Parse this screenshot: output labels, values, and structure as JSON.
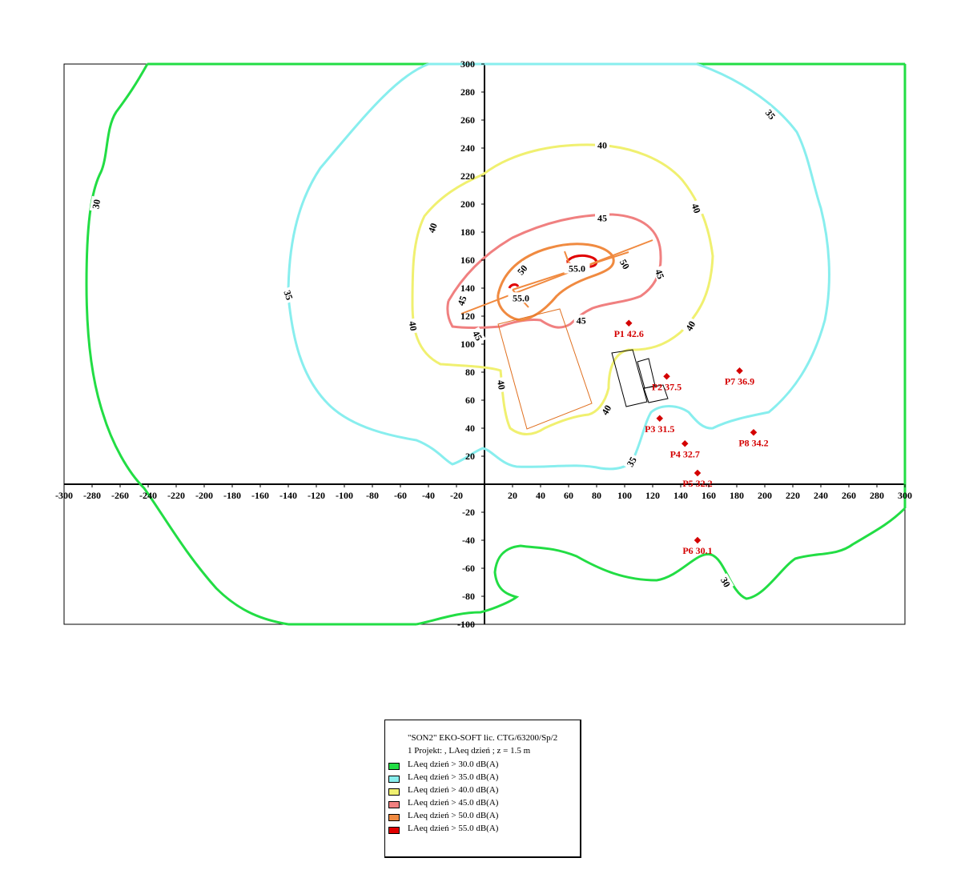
{
  "chart_data": {
    "type": "contour",
    "xlim": [
      -300,
      300
    ],
    "ylim": [
      -100,
      300
    ],
    "x_ticks": [
      -300,
      -280,
      -260,
      -240,
      -220,
      -200,
      -180,
      -160,
      -140,
      -120,
      -100,
      -80,
      -60,
      -40,
      -20,
      20,
      40,
      60,
      80,
      100,
      120,
      140,
      160,
      180,
      200,
      220,
      240,
      260,
      280,
      300
    ],
    "y_ticks": [
      300,
      280,
      260,
      240,
      220,
      200,
      180,
      160,
      140,
      120,
      100,
      80,
      60,
      40,
      20,
      -20,
      -40,
      -60,
      -80,
      -100
    ],
    "grid": false,
    "contours": [
      {
        "level": "30",
        "color": "#22dd44",
        "labels": [
          {
            "text": "30",
            "x": -277,
            "y": 200,
            "rot": -80
          },
          {
            "text": "30",
            "x": 172,
            "y": -70,
            "rot": 60
          }
        ]
      },
      {
        "level": "35",
        "color": "#88eeee",
        "labels": [
          {
            "text": "35",
            "x": -140,
            "y": 135,
            "rot": 70
          },
          {
            "text": "35",
            "x": 204,
            "y": 264,
            "rot": 50
          },
          {
            "text": "35",
            "x": 105,
            "y": 16,
            "rot": -60
          }
        ]
      },
      {
        "level": "40",
        "color": "#f0f070",
        "labels": [
          {
            "text": "40",
            "x": 84,
            "y": 242,
            "rot": 0
          },
          {
            "text": "40",
            "x": -37,
            "y": 183,
            "rot": -70
          },
          {
            "text": "40",
            "x": -51,
            "y": 113,
            "rot": 80
          },
          {
            "text": "40",
            "x": 151,
            "y": 197,
            "rot": 70
          },
          {
            "text": "40",
            "x": 147,
            "y": 113,
            "rot": -60
          },
          {
            "text": "40",
            "x": 12,
            "y": 71,
            "rot": 80
          },
          {
            "text": "40",
            "x": 87,
            "y": 53,
            "rot": -60
          }
        ]
      },
      {
        "level": "45",
        "color": "#f08080",
        "labels": [
          {
            "text": "45",
            "x": 84,
            "y": 190,
            "rot": 0
          },
          {
            "text": "45",
            "x": -16,
            "y": 131,
            "rot": -70
          },
          {
            "text": "45",
            "x": -5,
            "y": 106,
            "rot": 60
          },
          {
            "text": "45",
            "x": 125,
            "y": 150,
            "rot": 70
          },
          {
            "text": "45",
            "x": 69,
            "y": 117,
            "rot": 0
          }
        ]
      },
      {
        "level": "50",
        "color": "#f08a40",
        "labels": [
          {
            "text": "50",
            "x": 27,
            "y": 153,
            "rot": -50
          },
          {
            "text": "50",
            "x": 100,
            "y": 157,
            "rot": 60
          }
        ]
      },
      {
        "level": "55",
        "color": "#e00000",
        "labels": [
          {
            "text": "55.0",
            "x": 66,
            "y": 154,
            "rot": 0
          },
          {
            "text": "55.0",
            "x": 26,
            "y": 133,
            "rot": 0
          }
        ]
      }
    ],
    "points": [
      {
        "name": "P1",
        "value": "42.6",
        "x": 103,
        "y": 115
      },
      {
        "name": "P2",
        "value": "37.5",
        "x": 130,
        "y": 77
      },
      {
        "name": "P3",
        "value": "31.5",
        "x": 125,
        "y": 47
      },
      {
        "name": "P4",
        "value": "32.7",
        "x": 143,
        "y": 29
      },
      {
        "name": "P5",
        "value": "32.2",
        "x": 152,
        "y": 8
      },
      {
        "name": "P6",
        "value": "30.1",
        "x": 152,
        "y": -40
      },
      {
        "name": "P7",
        "value": "36.9",
        "x": 182,
        "y": 81
      },
      {
        "name": "P8",
        "value": "34.2",
        "x": 192,
        "y": 37
      }
    ]
  },
  "legend": {
    "header1": "\"SON2\"  EKO-SOFT  lic. CTG/63200/Sp/2",
    "header2": "1   Projekt:  , LAeq dzień ; z = 1.5 m",
    "items": [
      {
        "label": "LAeq dzień   > 30.0 dB(A)",
        "color": "#22dd44"
      },
      {
        "label": "LAeq dzień   > 35.0 dB(A)",
        "color": "#88eeee"
      },
      {
        "label": "LAeq dzień   > 40.0 dB(A)",
        "color": "#f0f070"
      },
      {
        "label": "LAeq dzień   > 45.0 dB(A)",
        "color": "#f08080"
      },
      {
        "label": "LAeq dzień   > 50.0 dB(A)",
        "color": "#f08a40"
      },
      {
        "label": "LAeq dzień   > 55.0 dB(A)",
        "color": "#e00000"
      }
    ]
  }
}
